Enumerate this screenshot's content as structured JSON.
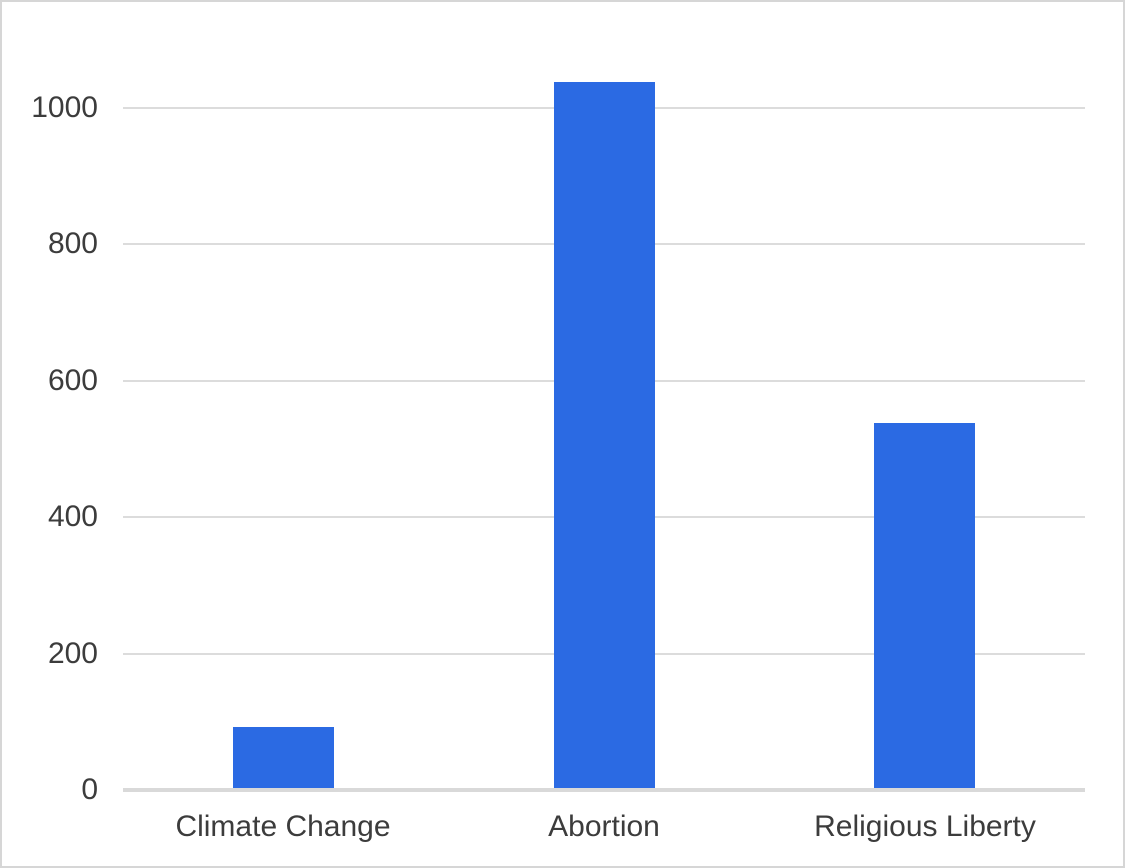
{
  "chart_data": {
    "type": "bar",
    "title": "",
    "xlabel": "",
    "ylabel": "",
    "categories": [
      "Climate Change",
      "Abortion",
      "Religious Liberty"
    ],
    "values": [
      90,
      1035,
      535
    ],
    "yticks": [
      0,
      200,
      400,
      600,
      800,
      1000
    ],
    "ylim": [
      0,
      1100
    ],
    "grid": true,
    "legend": "none",
    "series_color": "#2b6ae3",
    "gridline_color": "#dcdcdc",
    "axis_line_color": "#d9d9d9",
    "label_color": "#3c3c3c",
    "background_color": "#ffffff",
    "border_color": "#d6d6d6"
  }
}
